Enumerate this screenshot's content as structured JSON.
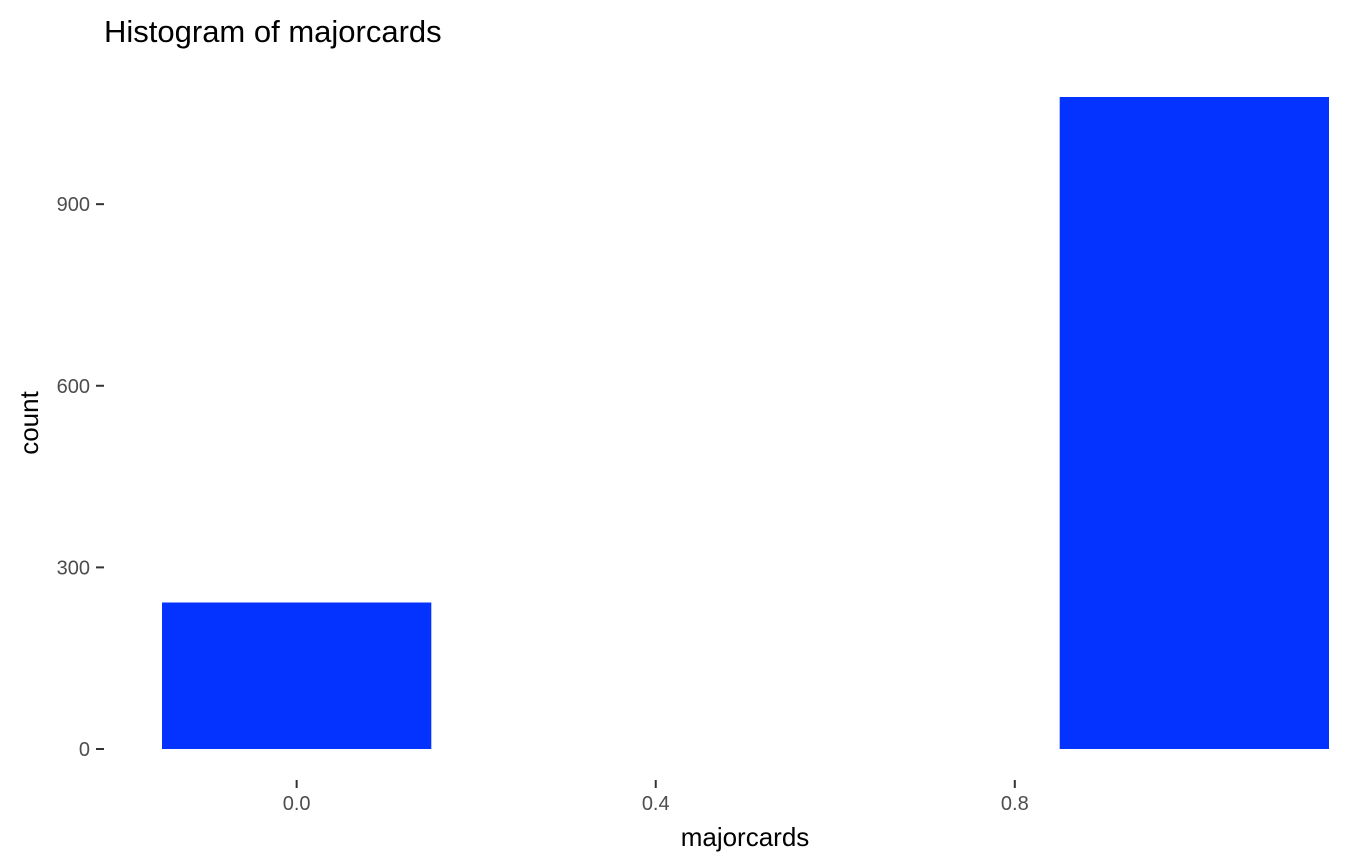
{
  "chart_data": {
    "type": "bar",
    "title": "Histogram of majorcards",
    "xlabel": "majorcards",
    "ylabel": "count",
    "bins": [
      {
        "x_start": -0.15,
        "x_end": 0.15,
        "count": 242
      },
      {
        "x_start": 0.85,
        "x_end": 1.15,
        "count": 1077
      }
    ],
    "x_ticks": [
      {
        "value": 0.0,
        "label": "0.0"
      },
      {
        "value": 0.4,
        "label": "0.4"
      },
      {
        "value": 0.8,
        "label": "0.8"
      }
    ],
    "y_ticks": [
      {
        "value": 0,
        "label": "0"
      },
      {
        "value": 300,
        "label": "300"
      },
      {
        "value": 600,
        "label": "600"
      },
      {
        "value": 900,
        "label": "900"
      }
    ],
    "xlim": [
      -0.15,
      1.15
    ],
    "ylim": [
      0,
      1077
    ],
    "bar_color": "#0433FF",
    "grid": false,
    "legend": "none"
  }
}
